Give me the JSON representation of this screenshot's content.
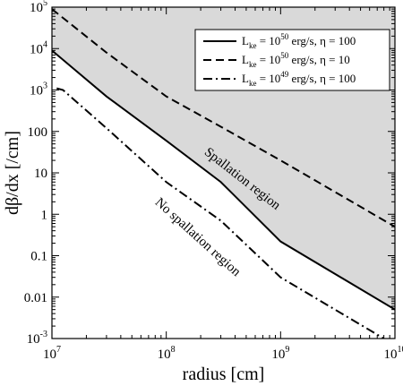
{
  "chart_data": {
    "type": "line",
    "xlabel": "radius [cm]",
    "ylabel": "dβ/dx [/cm]",
    "xscale": "log",
    "yscale": "log",
    "xlim": [
      10000000.0,
      10000000000.0
    ],
    "ylim": [
      0.001,
      100000
    ],
    "x_ticks": [
      {
        "value": 10000000.0,
        "base": "10",
        "exp": "7"
      },
      {
        "value": 100000000.0,
        "base": "10",
        "exp": "8"
      },
      {
        "value": 1000000000.0,
        "base": "10",
        "exp": "9"
      },
      {
        "value": 10000000000.0,
        "base": "10",
        "exp": "10"
      }
    ],
    "y_ticks": [
      {
        "value": 0.001,
        "base": "10",
        "exp": "-3"
      },
      {
        "value": 0.01,
        "label": "0.01"
      },
      {
        "value": 0.1,
        "label": "0.1"
      },
      {
        "value": 1,
        "label": "1"
      },
      {
        "value": 10,
        "label": "10"
      },
      {
        "value": 100,
        "label": "100"
      },
      {
        "value": 1000,
        "base": "10",
        "exp": "3"
      },
      {
        "value": 10000,
        "base": "10",
        "exp": "4"
      },
      {
        "value": 100000,
        "base": "10",
        "exp": "5"
      }
    ],
    "legend_position": "top-right",
    "series": [
      {
        "legend": {
          "base": "L",
          "sub": "ke",
          "mid": " = 10",
          "exp": "50",
          "tail": " erg/s, η = 100"
        },
        "style": "solid",
        "x": [
          10000000.0,
          30000000.0,
          100000000.0,
          300000000.0,
          1000000000.0,
          10000000000.0
        ],
        "y": [
          9000,
          700,
          60,
          6,
          0.22,
          0.005
        ]
      },
      {
        "legend": {
          "base": "L",
          "sub": "ke",
          "mid": " = 10",
          "exp": "50",
          "tail": " erg/s, η = 10"
        },
        "style": "dashed",
        "x": [
          10000000.0,
          30000000.0,
          100000000.0,
          300000000.0,
          1000000000.0,
          10000000000.0
        ],
        "y": [
          90000,
          8000,
          700,
          130,
          20,
          0.5
        ]
      },
      {
        "legend": {
          "base": "L",
          "sub": "ke",
          "mid": " = 10",
          "exp": "49",
          "tail": " erg/s, η = 100"
        },
        "style": "dashdot",
        "x": [
          11000000.0,
          12500000.0,
          30000000.0,
          100000000.0,
          300000000.0,
          1000000000.0,
          8000000000.0
        ],
        "y": [
          1100,
          1000,
          120,
          6,
          0.7,
          0.03,
          0.001
        ]
      }
    ],
    "shaded_region": {
      "label": "Spallation region",
      "color": "#d9d9d9"
    },
    "annotations": [
      "Spallation region",
      "No spallation region"
    ]
  }
}
